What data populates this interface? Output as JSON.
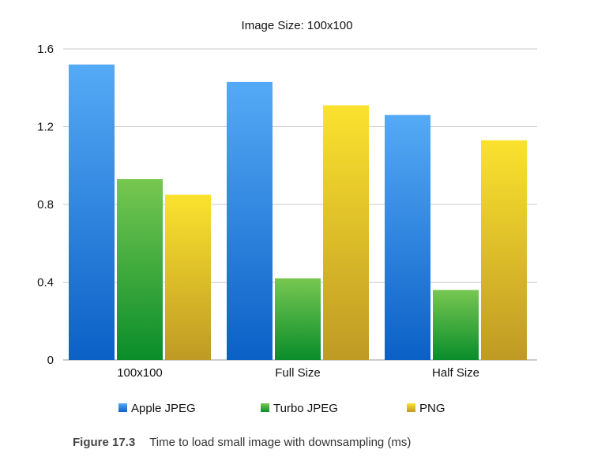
{
  "chart_data": {
    "type": "bar",
    "title": "Image Size: 100x100",
    "categories": [
      "100x100",
      "Full Size",
      "Half Size"
    ],
    "series": [
      {
        "name": "Apple JPEG",
        "values": [
          1.52,
          1.43,
          1.26
        ]
      },
      {
        "name": "Turbo JPEG",
        "values": [
          0.93,
          0.42,
          0.36
        ]
      },
      {
        "name": "PNG",
        "values": [
          0.85,
          1.31,
          1.13
        ]
      }
    ],
    "ylim": [
      0,
      1.6
    ],
    "yticks": [
      "0",
      "0.4",
      "0.8",
      "1.2",
      "1.6"
    ],
    "xlabel": "",
    "ylabel": "",
    "grid": true,
    "legend_position": "bottom"
  },
  "colors": {
    "Apple JPEG": {
      "top": "#55aaf6",
      "bottom": "#0b60c6"
    },
    "Turbo JPEG": {
      "top": "#77c751",
      "bottom": "#098d2a"
    },
    "PNG": {
      "top": "#fbe22e",
      "bottom": "#bf9a24"
    }
  },
  "caption": {
    "label": "Figure 17.3",
    "text": "Time to load small image with downsampling (ms)"
  }
}
